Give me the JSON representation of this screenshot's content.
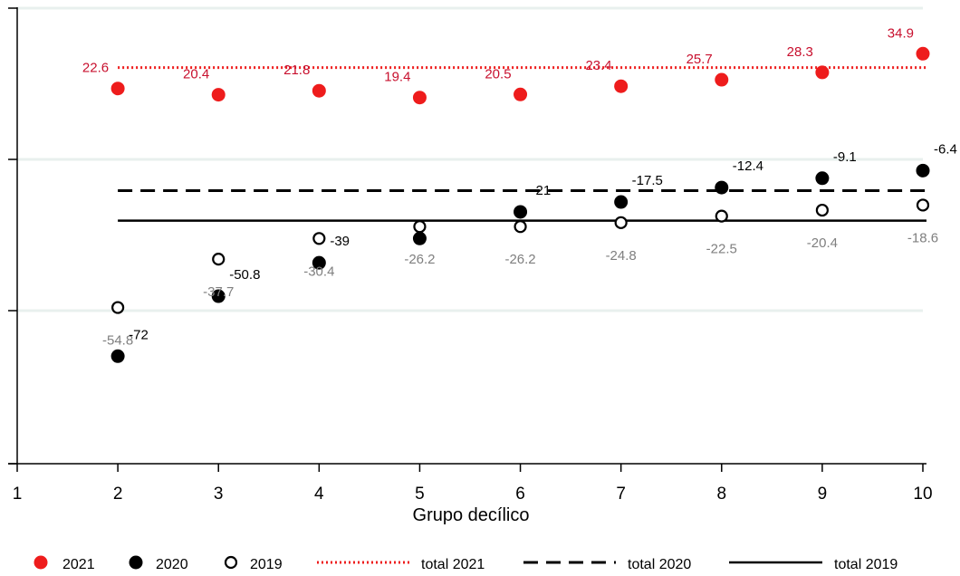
{
  "chart_data": {
    "type": "scatter",
    "title": "",
    "xlabel": "Grupo decílico",
    "ylabel": "",
    "xlim": [
      1,
      10
    ],
    "ylim": [
      -110,
      51
    ],
    "x_ticks": [
      "1",
      "2",
      "3",
      "4",
      "5",
      "6",
      "7",
      "8",
      "9",
      "10"
    ],
    "x": [
      2,
      3,
      4,
      5,
      6,
      7,
      8,
      9,
      10
    ],
    "grid": "horizontal",
    "legend_position": "bottom",
    "colors": {
      "s2021": "#ee1c1c",
      "s2021_labels": "#c8102e",
      "s2020": "#000000",
      "s2019": "#000000",
      "s2019_labels": "#7f7f7f",
      "grid": "#e8f0ee"
    },
    "series": [
      {
        "name": "2021",
        "marker": "filled-circle",
        "values": [
          22.6,
          20.4,
          21.8,
          19.4,
          20.5,
          23.4,
          25.7,
          28.3,
          34.9
        ],
        "labels": [
          "22.6",
          "20.4",
          "21.8",
          "19.4",
          "20.5",
          "23.4",
          "25.7",
          "28.3",
          "34.9"
        ]
      },
      {
        "name": "2020",
        "marker": "filled-circle",
        "values": [
          -72,
          -50.8,
          -39,
          -30.4,
          -21,
          -17.5,
          -12.4,
          -9.1,
          -6.4
        ],
        "labels": [
          "-72",
          "-50.8",
          "-39",
          "",
          "-21",
          "-17.5",
          "-12.4",
          "-9.1",
          "-6.4"
        ]
      },
      {
        "name": "2019",
        "marker": "hollow-circle",
        "values": [
          -54.8,
          -37.7,
          -30.4,
          -26.2,
          -26.2,
          -24.8,
          -22.5,
          -20.4,
          -18.6
        ],
        "labels": [
          "-54.8",
          "-37.7",
          "-30.4",
          "-26.2",
          "-26.2",
          "-24.8",
          "-22.5",
          "-20.4",
          "-18.6"
        ]
      }
    ],
    "reference_lines": [
      {
        "name": "total 2021",
        "style": "dotted",
        "color": "#ee1c1c",
        "y": 30.0
      },
      {
        "name": "total 2020",
        "style": "dashed",
        "color": "#000000",
        "y": -13.5
      },
      {
        "name": "total 2019",
        "style": "solid",
        "color": "#000000",
        "y": -24.1
      }
    ],
    "legend": [
      "2021",
      "2020",
      "2019",
      "total 2021",
      "total 2020",
      "total 2019"
    ]
  }
}
